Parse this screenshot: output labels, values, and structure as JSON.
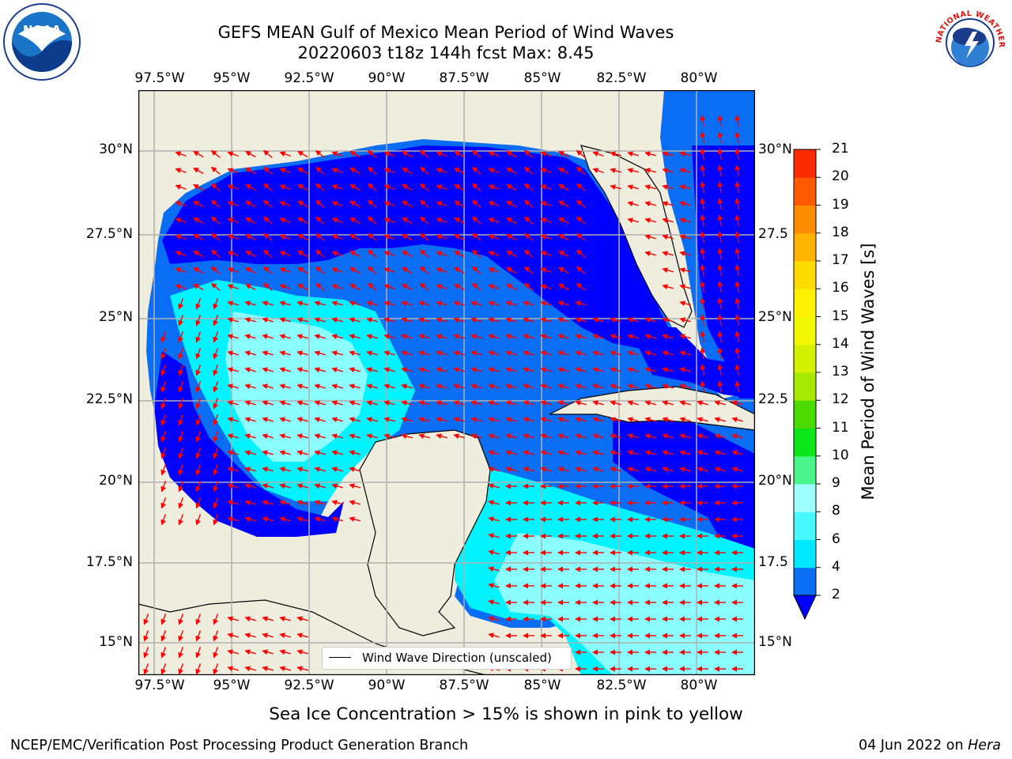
{
  "title": {
    "line1": "GEFS MEAN Gulf of Mexico Mean Period of Wind Waves",
    "line2": "20220603 t18z 144h fcst   Max: 8.45"
  },
  "axes": {
    "lon_ticks": [
      "97.5°W",
      "95°W",
      "92.5°W",
      "90°W",
      "87.5°W",
      "85°W",
      "82.5°W",
      "80°W"
    ],
    "lat_ticks_left": [
      "30°N",
      "27.5°N",
      "25°N",
      "22.5°N",
      "20°N",
      "17.5°N",
      "15°N"
    ],
    "lat_ticks_right": [
      "30°N",
      "27.5",
      "25°N",
      "22.5",
      "20°N",
      "17.5",
      "15°N"
    ]
  },
  "legend": {
    "label": "Wind Wave Direction (unscaled)"
  },
  "colorbar": {
    "label": "Mean Period of Wind Waves [s]",
    "ticks": [
      "2",
      "4",
      "6",
      "8",
      "9",
      "10",
      "11",
      "12",
      "13",
      "14",
      "15",
      "16",
      "17",
      "18",
      "19",
      "20",
      "21"
    ],
    "colors": [
      "#0a6ef5",
      "#00e8ff",
      "#47f8ff",
      "#9effff",
      "#49f58a",
      "#0be51a",
      "#4bdb00",
      "#a6e800",
      "#d4f200",
      "#f2f800",
      "#fff200",
      "#ffdc00",
      "#ffb300",
      "#ff8c00",
      "#ff5a00",
      "#ff2b00"
    ],
    "under_color": "#0000ff"
  },
  "colors": {
    "land": "#efedde",
    "deep_blue": "#0000ff",
    "mid_blue": "#0a6ef5",
    "cyan": "#00f4ff",
    "light_cyan": "#8cfdff",
    "arrow": "#ff0000"
  },
  "notes": {
    "sea_ice": "Sea Ice Concentration > 15% is shown in pink to yellow"
  },
  "footer": {
    "left": "NCEP/EMC/Verification Post Processing Product Generation Branch",
    "date": "04 Jun 2022 on ",
    "host": "Hera"
  },
  "logos": {
    "left": "NOAA",
    "right": "NATIONAL WEATHER SERVICE"
  }
}
